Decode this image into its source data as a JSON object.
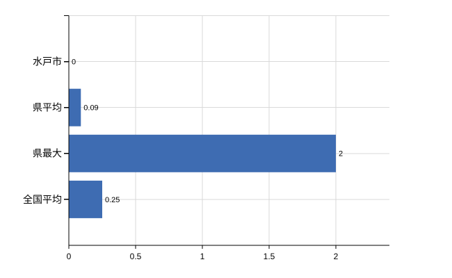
{
  "chart_data": {
    "type": "bar",
    "orientation": "horizontal",
    "title": "",
    "xlabel": "",
    "ylabel": "",
    "categories": [
      "水戸市",
      "県平均",
      "県最大",
      "全国平均"
    ],
    "values": [
      0,
      0.09,
      2,
      0.25
    ],
    "value_labels": [
      "0",
      "0.09",
      "2",
      "0.25"
    ],
    "xlim": [
      0,
      2.4
    ],
    "xticks": [
      0,
      0.5,
      1,
      1.5,
      2
    ],
    "xtick_labels": [
      "0",
      "0.5",
      "1",
      "1.5",
      "2"
    ],
    "grid": true,
    "legend": false,
    "colors": {
      "bar": "#3e6cb2",
      "gridline": "#d9d9d9",
      "axis": "#000000",
      "text": "#000000",
      "background": "#ffffff"
    }
  }
}
